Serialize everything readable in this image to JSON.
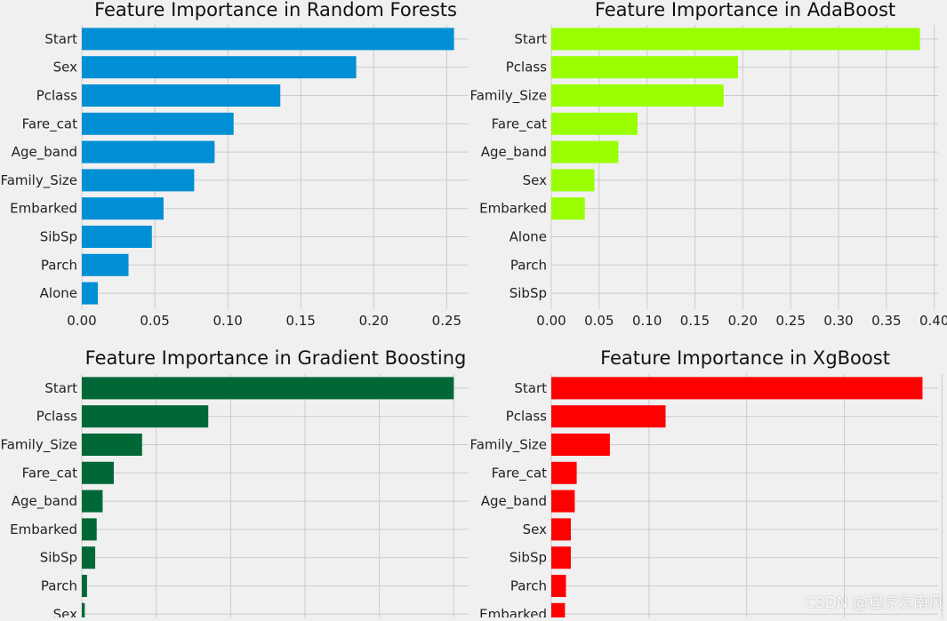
{
  "chart_data": [
    {
      "type": "bar",
      "orientation": "horizontal",
      "title": "Feature Importance in Random Forests",
      "color": "#008fd5",
      "categories": [
        "Start",
        "Sex",
        "Pclass",
        "Fare_cat",
        "Age_band",
        "Family_Size",
        "Embarked",
        "SibSp",
        "Parch",
        "Alone"
      ],
      "values": [
        0.255,
        0.188,
        0.136,
        0.104,
        0.091,
        0.077,
        0.056,
        0.048,
        0.032,
        0.011
      ],
      "xlim": [
        0,
        0.265
      ],
      "xticks": [
        0,
        0.05,
        0.1,
        0.15,
        0.2,
        0.25
      ],
      "xtick_labels": [
        "0.00",
        "0.05",
        "0.10",
        "0.15",
        "0.20",
        "0.25"
      ]
    },
    {
      "type": "bar",
      "orientation": "horizontal",
      "title": "Feature Importance in AdaBoost",
      "color": "#99ff00",
      "categories": [
        "Start",
        "Pclass",
        "Family_Size",
        "Fare_cat",
        "Age_band",
        "Sex",
        "Embarked",
        "Alone",
        "Parch",
        "SibSp"
      ],
      "values": [
        0.385,
        0.195,
        0.18,
        0.09,
        0.07,
        0.045,
        0.035,
        0,
        0,
        0
      ],
      "xlim": [
        0,
        0.404
      ],
      "xticks": [
        0,
        0.05,
        0.1,
        0.15,
        0.2,
        0.25,
        0.3,
        0.35,
        0.4
      ],
      "xtick_labels": [
        "0.00",
        "0.05",
        "0.10",
        "0.15",
        "0.20",
        "0.25",
        "0.30",
        "0.35",
        "0.40"
      ]
    },
    {
      "type": "bar",
      "orientation": "horizontal",
      "title": "Feature Importance in Gradient Boosting",
      "color": "#006837",
      "categories": [
        "Start",
        "Pclass",
        "Family_Size",
        "Fare_cat",
        "Age_band",
        "Embarked",
        "SibSp",
        "Parch",
        "Sex"
      ],
      "values": [
        0.5,
        0.17,
        0.081,
        0.043,
        0.028,
        0.02,
        0.018,
        0.007,
        0.004
      ],
      "xlim": [
        0,
        0.52
      ],
      "xticks": [
        0,
        0.1,
        0.2,
        0.3,
        0.4,
        0.5
      ],
      "xtick_labels": []
    },
    {
      "type": "bar",
      "orientation": "horizontal",
      "title": "Feature Importance in XgBoost",
      "color": "#ff0000",
      "categories": [
        "Start",
        "Pclass",
        "Family_Size",
        "Fare_cat",
        "Age_band",
        "Sex",
        "SibSp",
        "Parch",
        "Embarked"
      ],
      "values": [
        0.38,
        0.117,
        0.06,
        0.026,
        0.024,
        0.02,
        0.02,
        0.015,
        0.014
      ],
      "xlim": [
        0,
        0.396
      ],
      "xticks": [
        0,
        0.1,
        0.2,
        0.3,
        0.4
      ],
      "xtick_labels": []
    }
  ],
  "watermark": "CSDN @程序员南风"
}
